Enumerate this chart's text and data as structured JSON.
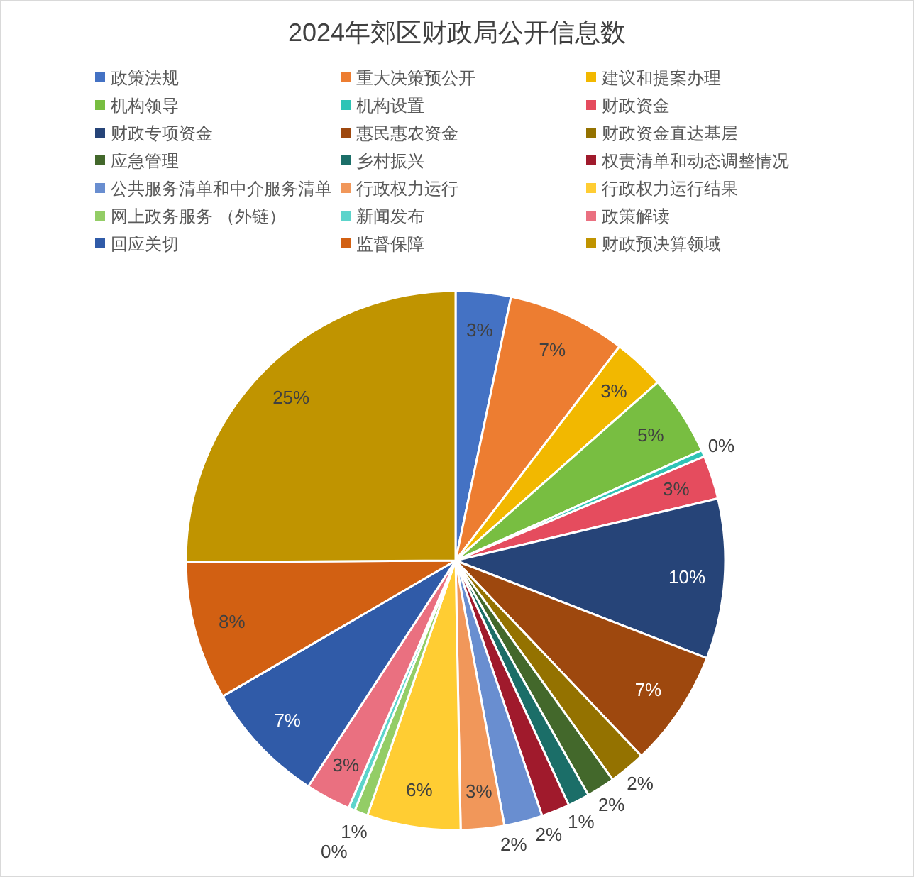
{
  "chart_data": {
    "type": "pie",
    "title": "2024年郊区财政局公开信息数",
    "categories": [
      "政策法规",
      "重大决策预公开",
      "建议和提案办理",
      "机构领导",
      "机构设置",
      "财政资金",
      "财政专项资金",
      "惠民惠农资金",
      "财政资金直达基层",
      "应急管理",
      "乡村振兴",
      "权责清单和动态调整情况",
      "公共服务清单和中介服务清单",
      "行政权力运行",
      "行政权力运行结果",
      "网上政务服务 （外链）",
      "新闻发布",
      "政策解读",
      "回应关切",
      "监督保障",
      "财政预决算领域"
    ],
    "values": [
      3.3,
      7.1,
      3.1,
      4.8,
      0.4,
      2.6,
      9.6,
      7.0,
      2.2,
      1.7,
      1.3,
      1.7,
      2.3,
      2.6,
      5.6,
      0.8,
      0.4,
      2.7,
      7.4,
      8.3,
      25.1
    ],
    "colors": [
      "#4472c4",
      "#ed7d31",
      "#f2b800",
      "#78be41",
      "#2ec4b6",
      "#e54c5e",
      "#264478",
      "#9e480e",
      "#947200",
      "#43682b",
      "#1b6e68",
      "#a01a2c",
      "#698ed0",
      "#f1975a",
      "#ffcd33",
      "#93cd66",
      "#5cd4cb",
      "#ea7080",
      "#305ba8",
      "#d26012",
      "#c09400"
    ],
    "value_labels": [
      "3%",
      "7%",
      "3%",
      "5%",
      "0%",
      "3%",
      "10%",
      "7%",
      "2%",
      "2%",
      "1%",
      "2%",
      "2%",
      "3%",
      "6%",
      "1%",
      "0%",
      "3%",
      "7%",
      "8%",
      "25%"
    ],
    "legend": "top"
  }
}
